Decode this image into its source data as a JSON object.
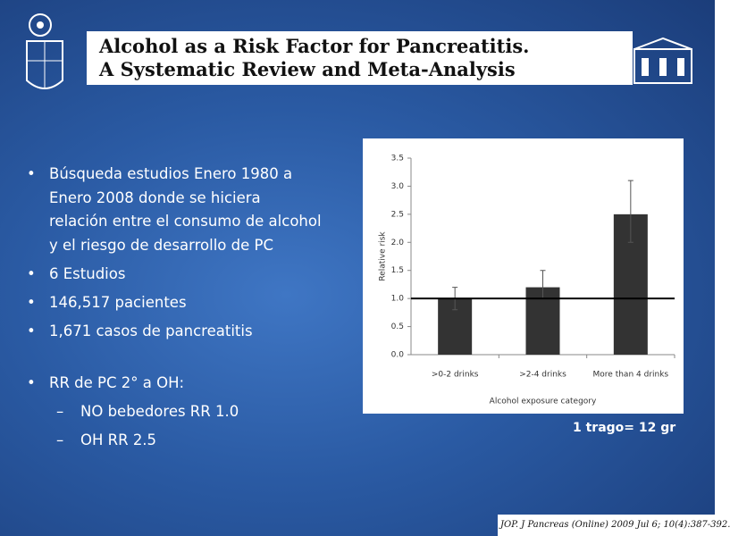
{
  "header": {
    "title_line1": "Alcohol as a Risk Factor for Pancreatitis.",
    "title_line2": "A Systematic Review and Meta-Analysis"
  },
  "bullets": [
    "Búsqueda estudios Enero 1980 a Enero 2008 donde se hiciera relación entre el consumo de alcohol y el riesgo de desarrollo de PC",
    "6 Estudios",
    "146,517 pacientes",
    "1,671 casos de pancreatitis",
    "RR de PC 2° a OH:"
  ],
  "sub_bullets": [
    "NO bebedores RR 1.0",
    "OH RR 2.5"
  ],
  "chart_data": {
    "type": "bar",
    "categories": [
      ">0-2 drinks",
      ">2-4 drinks",
      "More than 4 drinks"
    ],
    "values": [
      1.0,
      1.2,
      2.5
    ],
    "lower": [
      0.8,
      1.0,
      2.0
    ],
    "upper": [
      1.2,
      1.5,
      3.1
    ],
    "color": "#333333",
    "reference_line": 1.0,
    "ylabel": "Relative risk",
    "xlabel": "Alcohol exposure category",
    "ylim": [
      0,
      3.5
    ],
    "yticks": [
      {
        "value": 0,
        "label": "0.0"
      },
      {
        "value": 0.5,
        "label": "0.5"
      },
      {
        "value": 1,
        "label": "1.0"
      },
      {
        "value": 1.5,
        "label": "1.5"
      },
      {
        "value": 2,
        "label": "2.0"
      },
      {
        "value": 2.5,
        "label": "2.5"
      },
      {
        "value": 3,
        "label": "3.0"
      },
      {
        "value": 3.5,
        "label": "3.5"
      }
    ]
  },
  "note": "1 trago= 12 gr",
  "citation": "JOP. J Pancreas (Online) 2009 Jul 6; 10(4):387-392."
}
